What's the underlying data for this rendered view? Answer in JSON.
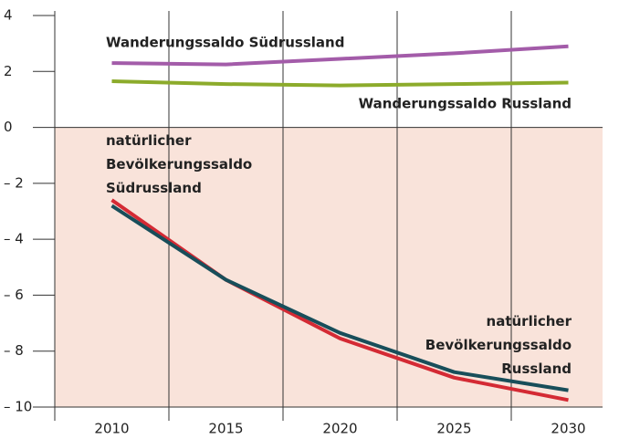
{
  "chart_data": {
    "type": "line",
    "x": [
      2010,
      2015,
      2020,
      2025,
      2030
    ],
    "series": [
      {
        "name": "Wanderungssaldo Südrussland",
        "color": "#a35ca9",
        "values": [
          2.3,
          2.25,
          2.45,
          2.65,
          2.9
        ]
      },
      {
        "name": "Wanderungssaldo Russland",
        "color": "#8cab2b",
        "values": [
          1.65,
          1.55,
          1.5,
          1.55,
          1.6
        ]
      },
      {
        "name": "natürlicher Bevölkerungssaldo Südrussland",
        "color": "#d42a34",
        "values": [
          -2.6,
          -5.45,
          -7.55,
          -8.95,
          -9.75
        ]
      },
      {
        "name": "natürlicher Bevölkerungssaldo Russland",
        "color": "#184e5a",
        "values": [
          -2.8,
          -5.45,
          -7.35,
          -8.75,
          -9.4
        ]
      }
    ],
    "xlim": [
      2007.5,
      2031.5
    ],
    "xticks": [
      2010,
      2015,
      2020,
      2025,
      2030
    ],
    "ylim": [
      -10,
      4
    ],
    "yticks": [
      4,
      2,
      0,
      {
        "value": -2,
        "label": "– 2"
      },
      {
        "value": -4,
        "label": "– 4"
      },
      {
        "value": -6,
        "label": "– 6"
      },
      {
        "value": -8,
        "label": "– 8"
      },
      {
        "value": -10,
        "label": "– 10"
      }
    ],
    "negative_shading": "#f9e3da"
  }
}
